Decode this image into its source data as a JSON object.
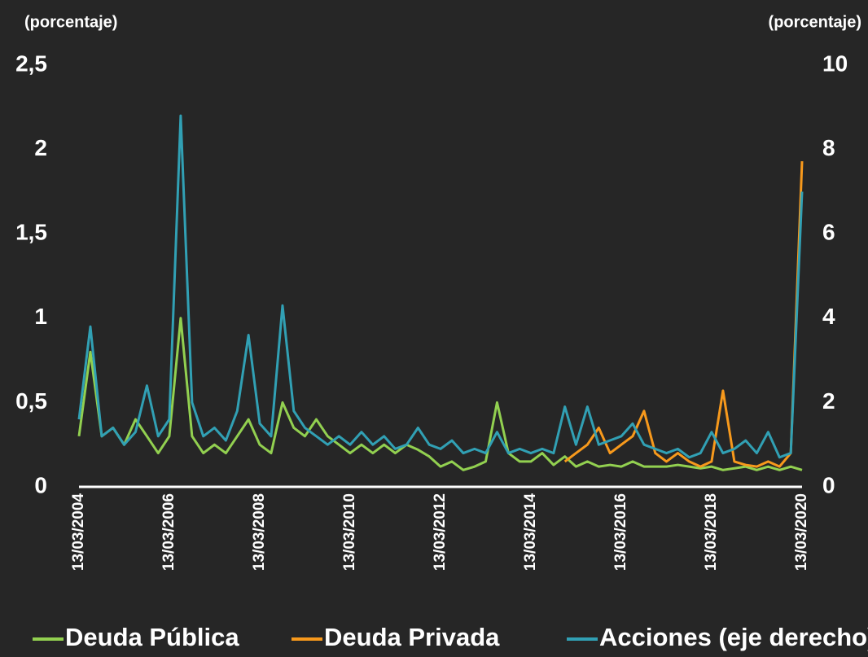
{
  "chart_data": {
    "type": "line",
    "y_label": "(porcentaje)",
    "y2_label": "(porcentaje)",
    "x": [
      "13/03/2004",
      "13/06/2004",
      "13/09/2004",
      "13/12/2004",
      "13/03/2005",
      "13/06/2005",
      "13/09/2005",
      "13/12/2005",
      "13/03/2006",
      "13/06/2006",
      "13/09/2006",
      "13/12/2006",
      "13/03/2007",
      "13/06/2007",
      "13/09/2007",
      "13/12/2007",
      "13/03/2008",
      "13/06/2008",
      "13/09/2008",
      "13/12/2008",
      "13/03/2009",
      "13/06/2009",
      "13/09/2009",
      "13/12/2009",
      "13/03/2010",
      "13/06/2010",
      "13/09/2010",
      "13/12/2010",
      "13/03/2011",
      "13/06/2011",
      "13/09/2011",
      "13/12/2011",
      "13/03/2012",
      "13/06/2012",
      "13/09/2012",
      "13/12/2012",
      "13/03/2013",
      "13/06/2013",
      "13/09/2013",
      "13/12/2013",
      "13/03/2014",
      "13/06/2014",
      "13/09/2014",
      "13/12/2014",
      "13/03/2015",
      "13/06/2015",
      "13/09/2015",
      "13/12/2015",
      "13/03/2016",
      "13/06/2016",
      "13/09/2016",
      "13/12/2016",
      "13/03/2017",
      "13/06/2017",
      "13/09/2017",
      "13/12/2017",
      "13/03/2018",
      "13/06/2018",
      "13/09/2018",
      "13/12/2018",
      "13/03/2019",
      "13/06/2019",
      "13/09/2019",
      "13/12/2019",
      "13/03/2020"
    ],
    "xlim": [
      "13/03/2004",
      "13/03/2020"
    ],
    "xticks": [
      "13/03/2004",
      "13/03/2006",
      "13/03/2008",
      "13/03/2010",
      "13/03/2012",
      "13/03/2014",
      "13/03/2016",
      "13/03/2018",
      "13/03/2020"
    ],
    "ylim": [
      0,
      2.5
    ],
    "yticks": [
      0,
      {
        "value": 0.5,
        "label": "0,5"
      },
      1,
      {
        "value": 1.5,
        "label": "1,5"
      },
      2,
      {
        "value": 2.5,
        "label": "2,5"
      }
    ],
    "y2lim": [
      0,
      10
    ],
    "y2ticks": [
      0,
      2,
      4,
      6,
      8,
      10
    ],
    "series": [
      {
        "name": "Deuda Pública",
        "color": "#92d050",
        "values": [
          0.3,
          0.8,
          0.3,
          0.35,
          0.25,
          0.4,
          0.3,
          0.2,
          0.3,
          1.0,
          0.3,
          0.2,
          0.25,
          0.2,
          0.3,
          0.4,
          0.25,
          0.2,
          0.5,
          0.35,
          0.3,
          0.4,
          0.3,
          0.25,
          0.2,
          0.25,
          0.2,
          0.25,
          0.2,
          0.25,
          0.22,
          0.18,
          0.12,
          0.15,
          0.1,
          0.12,
          0.15,
          0.5,
          0.2,
          0.15,
          0.15,
          0.2,
          0.13,
          0.18,
          0.12,
          0.15,
          0.12,
          0.13,
          0.12,
          0.15,
          0.12,
          0.12,
          0.12,
          0.13,
          0.12,
          0.11,
          0.12,
          0.1,
          0.11,
          0.12,
          0.1,
          0.12,
          0.1,
          0.12,
          0.1
        ]
      },
      {
        "name": "Deuda Privada",
        "color": "#f7991c",
        "values": [
          null,
          null,
          null,
          null,
          null,
          null,
          null,
          null,
          null,
          null,
          null,
          null,
          null,
          null,
          null,
          null,
          null,
          null,
          null,
          null,
          null,
          null,
          null,
          null,
          null,
          null,
          null,
          null,
          null,
          null,
          null,
          null,
          null,
          null,
          null,
          null,
          null,
          null,
          null,
          null,
          null,
          null,
          null,
          0.15,
          0.2,
          0.25,
          0.35,
          0.2,
          0.25,
          0.3,
          0.45,
          0.2,
          0.15,
          0.2,
          0.15,
          0.12,
          0.15,
          0.57,
          0.15,
          0.13,
          0.12,
          0.15,
          0.12,
          0.2,
          1.93
        ]
      },
      {
        "name": "Acciones (eje derecho)",
        "color": "#31a0b4",
        "axis": "y2",
        "values": [
          1.6,
          3.8,
          1.2,
          1.4,
          1.0,
          1.3,
          2.4,
          1.2,
          1.6,
          8.8,
          2.0,
          1.2,
          1.4,
          1.1,
          1.8,
          3.6,
          1.5,
          1.2,
          4.3,
          1.8,
          1.4,
          1.2,
          1.0,
          1.2,
          1.0,
          1.3,
          1.0,
          1.2,
          0.9,
          1.0,
          1.4,
          1.0,
          0.9,
          1.1,
          0.8,
          0.9,
          0.8,
          1.3,
          0.8,
          0.9,
          0.8,
          0.9,
          0.8,
          1.9,
          1.0,
          1.9,
          1.0,
          1.1,
          1.2,
          1.5,
          1.0,
          0.9,
          0.8,
          0.9,
          0.7,
          0.8,
          1.3,
          0.8,
          0.9,
          1.1,
          0.8,
          1.3,
          0.7,
          0.8,
          7.0
        ]
      }
    ]
  }
}
